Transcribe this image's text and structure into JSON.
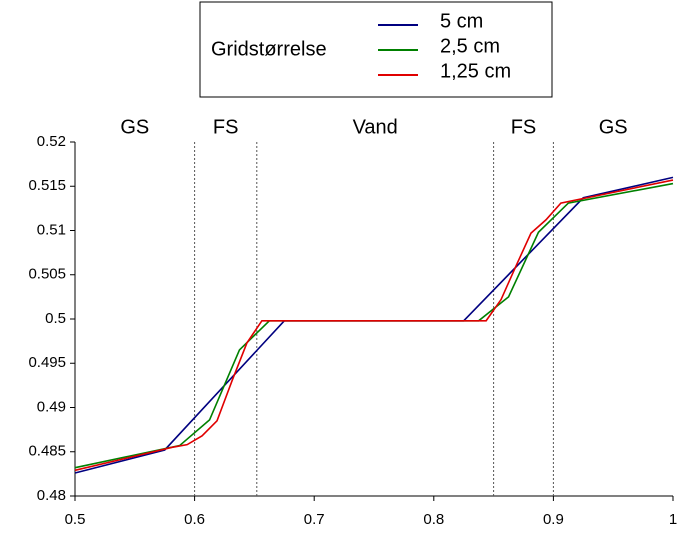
{
  "chart_data": {
    "type": "line",
    "legend_title": "Gridstørrelse",
    "annotations": [
      "GS",
      "FS",
      "Vand",
      "FS",
      "GS"
    ],
    "region_lines": [
      0.6,
      0.652,
      0.85,
      0.9
    ],
    "series": [
      {
        "name": "5 cm",
        "color": "#000080",
        "x": [
          0.5,
          0.575,
          0.675,
          0.825,
          0.925,
          1
        ],
        "values": [
          0.4826,
          0.4852,
          0.4998,
          0.4998,
          0.5137,
          0.516
        ]
      },
      {
        "name": "2,5 cm",
        "color": "#008000",
        "x": [
          0.5,
          0.5875,
          0.6125,
          0.6375,
          0.6625,
          0.8375,
          0.8625,
          0.8875,
          0.9125,
          1
        ],
        "values": [
          0.4832,
          0.4857,
          0.4886,
          0.4965,
          0.4998,
          0.4998,
          0.5025,
          0.5098,
          0.5131,
          0.5153
        ]
      },
      {
        "name": "1,25 cm",
        "color": "#e00000",
        "x": [
          0.5,
          0.58125,
          0.59375,
          0.60625,
          0.61875,
          0.63125,
          0.64375,
          0.65625,
          0.84375,
          0.85625,
          0.86875,
          0.88125,
          0.89375,
          0.90625,
          1
        ],
        "values": [
          0.4829,
          0.4855,
          0.4858,
          0.4868,
          0.4885,
          0.493,
          0.4973,
          0.4998,
          0.4998,
          0.5022,
          0.506,
          0.5097,
          0.5112,
          0.5131,
          0.5157
        ]
      }
    ],
    "xlim": [
      0.5,
      1
    ],
    "xticks": [
      0.5,
      0.6,
      0.7,
      0.8,
      0.9,
      1
    ],
    "ylim": [
      0.48,
      0.52
    ],
    "yticks": [
      0.48,
      0.485,
      0.49,
      0.495,
      0.5,
      0.505,
      0.51,
      0.515,
      0.52
    ]
  }
}
